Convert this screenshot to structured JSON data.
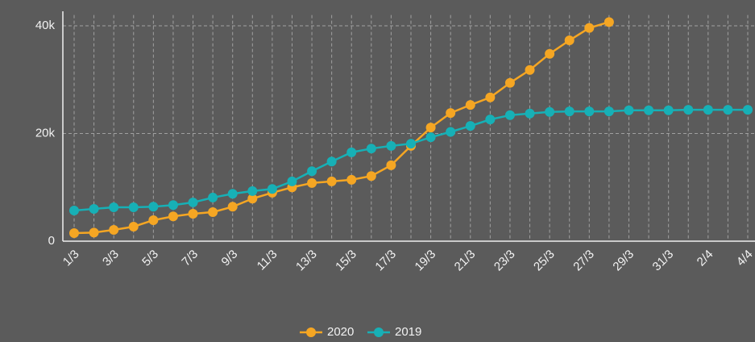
{
  "chart_data": {
    "type": "line",
    "categories": [
      "1/3",
      null,
      "3/3",
      null,
      "5/3",
      null,
      "7/3",
      null,
      "9/3",
      null,
      "11/3",
      null,
      "13/3",
      null,
      "15/3",
      null,
      "17/3",
      null,
      "19/3",
      null,
      "21/3",
      null,
      "23/3",
      null,
      "25/3",
      null,
      "27/3",
      null,
      "29/3",
      null,
      "31/3",
      null,
      "2/4",
      null,
      "4/4"
    ],
    "series": [
      {
        "name": "2020",
        "color": "#f5a623",
        "values": [
          1500,
          1600,
          2100,
          2700,
          3900,
          4600,
          5100,
          5400,
          6400,
          7900,
          9000,
          10000,
          10800,
          11100,
          11400,
          12100,
          14100,
          17700,
          21100,
          23800,
          25300,
          26700,
          29400,
          31800,
          34800,
          37300,
          39600,
          40700,
          null,
          null,
          null,
          null,
          null,
          null,
          null
        ]
      },
      {
        "name": "2019",
        "color": "#17b0b6",
        "values": [
          5700,
          6000,
          6300,
          6300,
          6400,
          6700,
          7200,
          8100,
          8800,
          9300,
          9700,
          11100,
          13000,
          14800,
          16500,
          17200,
          17700,
          18100,
          19300,
          20300,
          21400,
          22600,
          23400,
          23700,
          24000,
          24100,
          24100,
          24100,
          24300,
          24300,
          24300,
          24400,
          24400,
          24400,
          24400
        ]
      }
    ],
    "ylim": [
      0,
      42000
    ],
    "yticks": [
      0,
      {
        "value": 20000,
        "label": "20k"
      },
      {
        "value": 40000,
        "label": "40k"
      }
    ],
    "grid": true,
    "legend": "bottom"
  }
}
